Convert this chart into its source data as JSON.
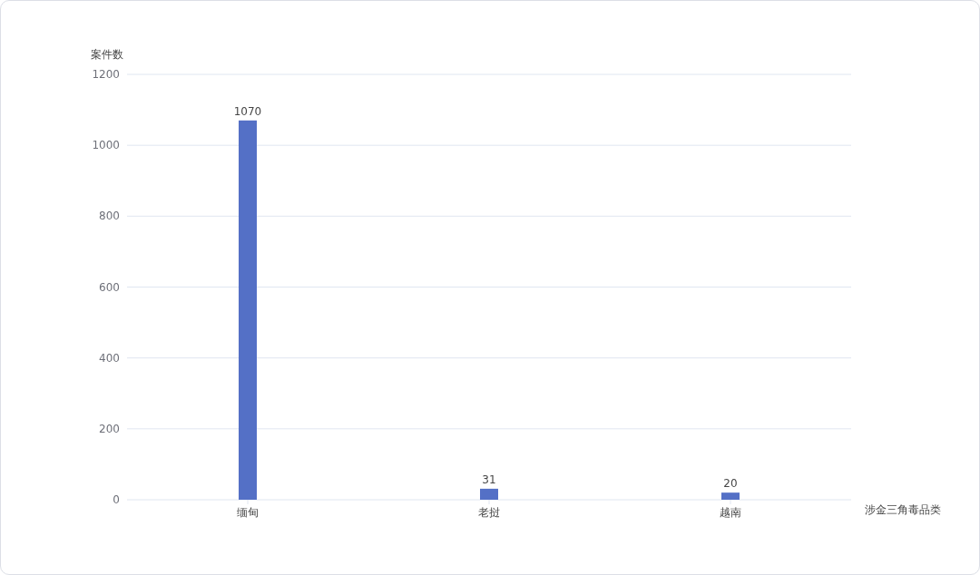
{
  "chart_data": {
    "type": "bar",
    "ylabel": "案件数",
    "xlabel": "涉金三角毒品类",
    "categories": [
      "缅甸",
      "老挝",
      "越南"
    ],
    "values": [
      1070,
      31,
      20
    ],
    "color": "#5470c6",
    "ylim": [
      0,
      1200
    ],
    "yticks": [
      0,
      200,
      400,
      600,
      800,
      1000,
      1200
    ],
    "grid": "y",
    "data_labels": true
  }
}
